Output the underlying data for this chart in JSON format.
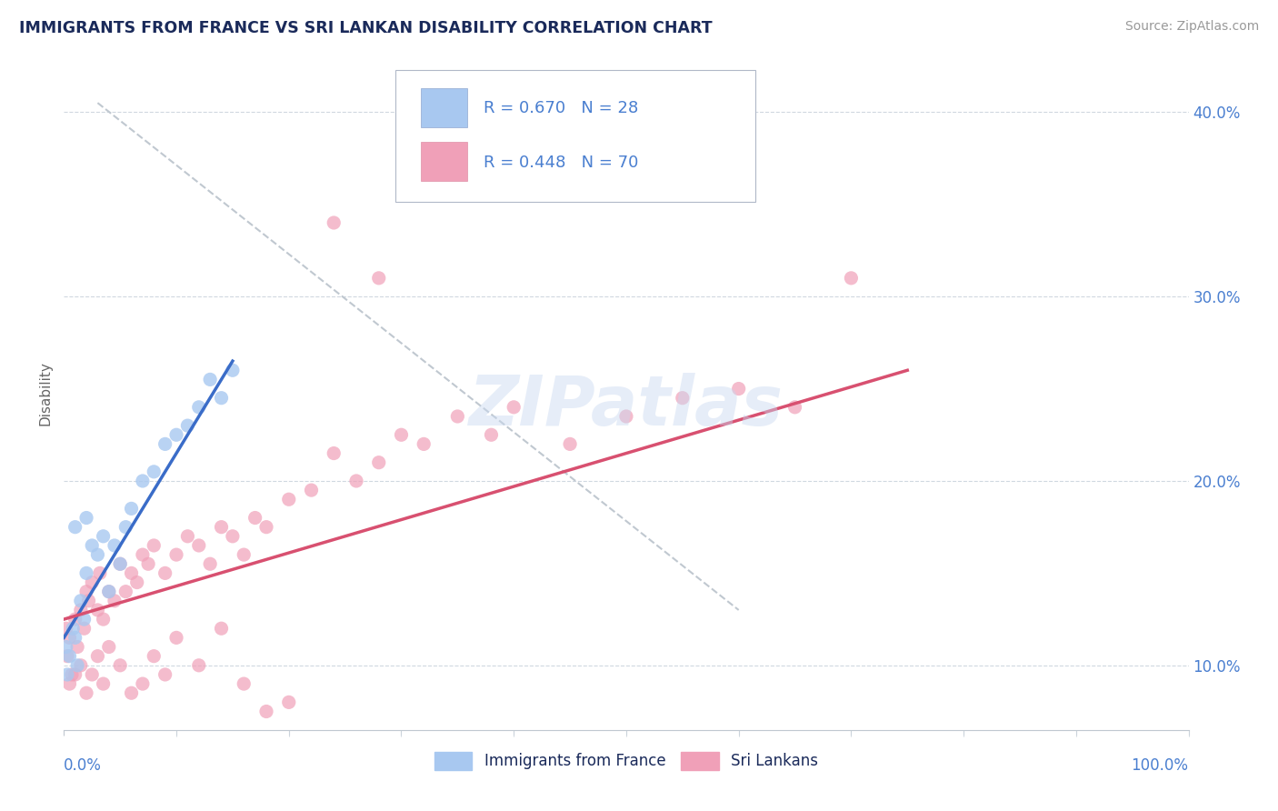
{
  "title": "IMMIGRANTS FROM FRANCE VS SRI LANKAN DISABILITY CORRELATION CHART",
  "source": "Source: ZipAtlas.com",
  "ylabel": "Disability",
  "watermark": "ZIPatlas",
  "legend_label1": "Immigrants from France",
  "legend_label2": "Sri Lankans",
  "blue_color": "#a8c8f0",
  "pink_color": "#f0a0b8",
  "blue_line_color": "#3a6cc8",
  "pink_line_color": "#d85070",
  "gray_line_color": "#c0c8d0",
  "title_color": "#1a2a5a",
  "source_color": "#999999",
  "axis_label_color": "#4a7fd0",
  "legend_r_color": "#4a7fd0",
  "legend_n_color": "#1a2a5a",
  "blue_scatter_x": [
    0.2,
    0.3,
    0.5,
    0.8,
    1.0,
    1.2,
    1.5,
    1.8,
    2.0,
    2.5,
    3.0,
    3.5,
    4.0,
    4.5,
    5.0,
    5.5,
    6.0,
    7.0,
    8.0,
    9.0,
    10.0,
    11.0,
    12.0,
    13.0,
    14.0,
    15.0,
    1.0,
    2.0
  ],
  "blue_scatter_y": [
    11.0,
    9.5,
    10.5,
    12.0,
    11.5,
    10.0,
    13.5,
    12.5,
    15.0,
    16.5,
    16.0,
    17.0,
    14.0,
    16.5,
    15.5,
    17.5,
    18.5,
    20.0,
    20.5,
    22.0,
    22.5,
    23.0,
    24.0,
    25.5,
    24.5,
    26.0,
    17.5,
    18.0
  ],
  "pink_scatter_x": [
    0.2,
    0.3,
    0.5,
    0.7,
    1.0,
    1.2,
    1.5,
    1.8,
    2.0,
    2.2,
    2.5,
    3.0,
    3.2,
    3.5,
    4.0,
    4.5,
    5.0,
    5.5,
    6.0,
    6.5,
    7.0,
    7.5,
    8.0,
    9.0,
    10.0,
    11.0,
    12.0,
    13.0,
    14.0,
    15.0,
    16.0,
    17.0,
    18.0,
    20.0,
    22.0,
    24.0,
    26.0,
    28.0,
    30.0,
    32.0,
    35.0,
    38.0,
    40.0,
    45.0,
    50.0,
    55.0,
    60.0,
    65.0,
    70.0,
    0.5,
    1.0,
    1.5,
    2.0,
    2.5,
    3.0,
    3.5,
    4.0,
    5.0,
    6.0,
    7.0,
    8.0,
    9.0,
    10.0,
    12.0,
    14.0,
    16.0,
    18.0,
    20.0,
    24.0,
    28.0
  ],
  "pink_scatter_y": [
    12.0,
    10.5,
    11.5,
    9.5,
    12.5,
    11.0,
    13.0,
    12.0,
    14.0,
    13.5,
    14.5,
    13.0,
    15.0,
    12.5,
    14.0,
    13.5,
    15.5,
    14.0,
    15.0,
    14.5,
    16.0,
    15.5,
    16.5,
    15.0,
    16.0,
    17.0,
    16.5,
    15.5,
    17.5,
    17.0,
    16.0,
    18.0,
    17.5,
    19.0,
    19.5,
    21.5,
    20.0,
    21.0,
    22.5,
    22.0,
    23.5,
    22.5,
    24.0,
    22.0,
    23.5,
    24.5,
    25.0,
    24.0,
    31.0,
    9.0,
    9.5,
    10.0,
    8.5,
    9.5,
    10.5,
    9.0,
    11.0,
    10.0,
    8.5,
    9.0,
    10.5,
    9.5,
    11.5,
    10.0,
    12.0,
    9.0,
    7.5,
    8.0,
    34.0,
    31.0
  ],
  "blue_line_x0": 0.0,
  "blue_line_y0": 11.5,
  "blue_line_x1": 15.0,
  "blue_line_y1": 26.5,
  "pink_line_x0": 0.0,
  "pink_line_y0": 12.5,
  "pink_line_x1": 75.0,
  "pink_line_y1": 26.0,
  "gray_line_x0": 3.0,
  "gray_line_y0": 40.5,
  "gray_line_x1": 60.0,
  "gray_line_y1": 13.0,
  "xlim": [
    0,
    100
  ],
  "ylim": [
    6.5,
    43
  ],
  "yticks_right": [
    10,
    20,
    30,
    40
  ],
  "ytick_labels_right": [
    "10.0%",
    "20.0%",
    "30.0%",
    "40.0%"
  ],
  "fig_width": 14.06,
  "fig_height": 8.92,
  "dpi": 100
}
